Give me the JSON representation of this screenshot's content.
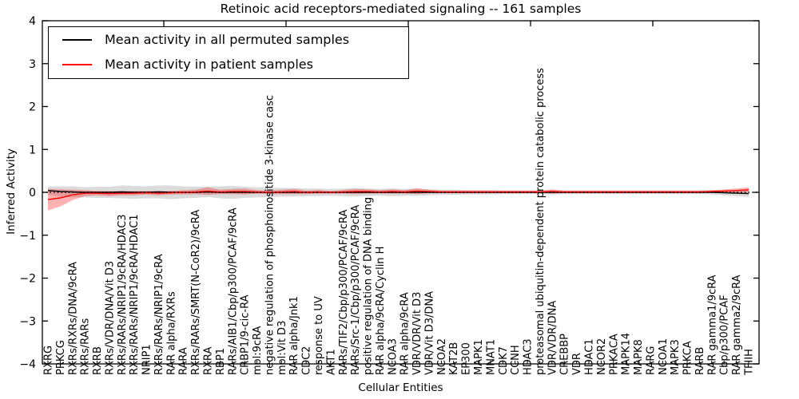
{
  "legend": {
    "entries": [
      {
        "label": "Mean activity in all permuted samples",
        "color": "#000000"
      },
      {
        "label": "Mean activity in patient samples",
        "color": "#ff0000"
      }
    ],
    "position": "upper left"
  },
  "chart_data": {
    "type": "line",
    "title": "Retinoic acid receptors-mediated signaling -- 161 samples",
    "xlabel": "Cellular Entities",
    "ylabel": "Inferred Activity",
    "ylim": [
      -4,
      4
    ],
    "grid": false,
    "zero_line": {
      "style": "dotted",
      "color": "#000000",
      "y": 0
    },
    "yticks": [
      {
        "value": 4,
        "label": "4"
      },
      {
        "value": 3,
        "label": "3"
      },
      {
        "value": 2,
        "label": "2"
      },
      {
        "value": 1,
        "label": "1"
      },
      {
        "value": 0,
        "label": "0"
      },
      {
        "value": -1,
        "label": "−1"
      },
      {
        "value": -2,
        "label": "−2"
      },
      {
        "value": -3,
        "label": "−3"
      },
      {
        "value": -4,
        "label": "−4"
      }
    ],
    "categories": [
      "RXRG",
      "PRKCG",
      "RXRs/RXRs/DNA/9cRA",
      "RXRs/RARs",
      "RXRB",
      "RXRs/VDR/DNA/Vit D3",
      "RXRs/RARs/NRIP1/9cRA/HDAC3",
      "RXRs/RARs/NRIP1/9cRA/HDAC1",
      "NRIP1",
      "RXRs/RARs/NRIP1/9cRA",
      "RAR alpha/RXRs",
      "RARA",
      "RXRs/RARs/SMRT(N-CoR2)/9cRA",
      "RXRA",
      "RBP1",
      "RARs/AIB1/Cbp/p300/PCAF/9cRA",
      "CRBP1/9-cic-RA",
      "mol:9cRA",
      "negative regulation of phosphoinositide 3-kinase casc",
      "mol:Vit D3",
      "RAR alpha/Jnk1",
      "CDC2",
      "response to UV",
      "AKT1",
      "RARs/TIF2/Cbp/p300/PCAF/9cRA",
      "RARs/Src-1/Cbp/p300/PCAF/9cRA",
      "positive regulation of DNA binding",
      "RAR alpha/9cRA/Cyclin H",
      "NCOA3",
      "RAR alpha/9cRA",
      "VDR/VDR/Vit D3",
      "VDR/Vit D3/DNA",
      "NCOA2",
      "KAT2B",
      "EP300",
      "MAPK1",
      "MNAT1",
      "CDK7",
      "CCNH",
      "HDAC3",
      "proteasomal ubiquitin-dependent protein catabolic process",
      "VDR/VDR/DNA",
      "CREBBP",
      "VDR",
      "HDAC1",
      "NCOR2",
      "PRKACA",
      "MAPK14",
      "MAPK8",
      "RARG",
      "NCOA1",
      "MAPK3",
      "PRKCA",
      "RARB",
      "RAR gamma1/9cRA",
      "Cbp/p300/PCAF",
      "RAR gamma2/9cRA",
      "TFIIH"
    ],
    "series": [
      {
        "name": "Mean activity in all permuted samples",
        "color": "#000000",
        "values": [
          0.04,
          0.02,
          0.01,
          0,
          0,
          0,
          0.01,
          0,
          0,
          0.01,
          0,
          0,
          0,
          0.01,
          0,
          0,
          0,
          0,
          0,
          0,
          0,
          0,
          0,
          0,
          0,
          0,
          0,
          0,
          0,
          0,
          0,
          0,
          0,
          0,
          0,
          0,
          0,
          0,
          0,
          0,
          0,
          0,
          0,
          0,
          0,
          0,
          0,
          0,
          0,
          0,
          0,
          0,
          0,
          0,
          0,
          -0.01,
          -0.02,
          -0.03
        ]
      },
      {
        "name": "Mean activity in patient samples",
        "color": "#ff0000",
        "values": [
          -0.17,
          -0.13,
          -0.06,
          -0.02,
          -0.02,
          -0.03,
          -0.02,
          -0.02,
          -0.01,
          -0.02,
          -0.01,
          0,
          0.01,
          0.03,
          0.01,
          0.02,
          0.02,
          0.01,
          0,
          0.01,
          0.02,
          0,
          0.01,
          0,
          0.01,
          0.02,
          0.02,
          0.01,
          0.02,
          0.01,
          0.03,
          0.02,
          0.01,
          0.01,
          0.01,
          0.01,
          0.01,
          0.01,
          0.01,
          0.01,
          0.01,
          0.02,
          0.01,
          0.01,
          0.01,
          0.01,
          0.01,
          0.01,
          0.01,
          0.01,
          0.01,
          0.01,
          0.01,
          0.01,
          0.02,
          0.03,
          0.04,
          0.06
        ]
      }
    ],
    "bands": [
      {
        "name": "permuted-confidence-band",
        "series": "Mean activity in all permuted samples",
        "color": "#999999",
        "opacity": 0.35,
        "half_widths": [
          0.1,
          0.12,
          0.13,
          0.12,
          0.13,
          0.13,
          0.15,
          0.15,
          0.14,
          0.15,
          0.16,
          0.14,
          0.13,
          0.12,
          0.14,
          0.15,
          0.13,
          0.12,
          0.11,
          0.1,
          0.1,
          0.09,
          0.09,
          0.08,
          0.09,
          0.1,
          0.09,
          0.08,
          0.09,
          0.08,
          0.08,
          0.07,
          0.06,
          0.06,
          0.05,
          0.05,
          0.05,
          0.04,
          0.04,
          0.04,
          0.04,
          0.05,
          0.04,
          0.04,
          0.04,
          0.04,
          0.04,
          0.04,
          0.04,
          0.04,
          0.04,
          0.04,
          0.04,
          0.04,
          0.05,
          0.06,
          0.07,
          0.08
        ]
      },
      {
        "name": "patient-confidence-band",
        "series": "Mean activity in patient samples",
        "color": "#ff0000",
        "opacity": 0.3,
        "half_widths": [
          0.25,
          0.2,
          0.12,
          0.07,
          0.05,
          0.06,
          0.05,
          0.05,
          0.04,
          0.05,
          0.04,
          0.05,
          0.05,
          0.09,
          0.05,
          0.06,
          0.07,
          0.04,
          0.04,
          0.05,
          0.06,
          0.04,
          0.04,
          0.03,
          0.04,
          0.06,
          0.05,
          0.04,
          0.05,
          0.04,
          0.07,
          0.04,
          0.03,
          0.03,
          0.03,
          0.03,
          0.03,
          0.03,
          0.03,
          0.03,
          0.03,
          0.05,
          0.03,
          0.03,
          0.03,
          0.03,
          0.03,
          0.03,
          0.03,
          0.03,
          0.03,
          0.03,
          0.03,
          0.03,
          0.03,
          0.04,
          0.05,
          0.06
        ]
      }
    ]
  }
}
